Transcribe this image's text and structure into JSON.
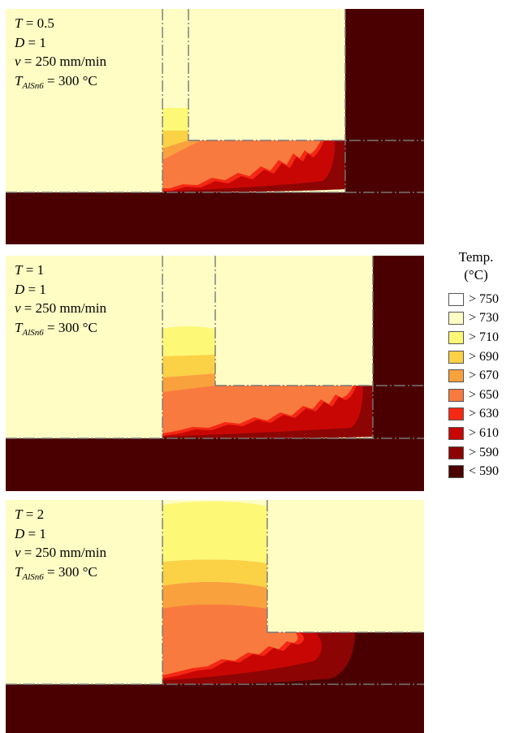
{
  "panels": [
    {
      "T": "0.5",
      "D": "1",
      "v": "250 mm/min",
      "T_alsn6": "300 °C"
    },
    {
      "T": "1",
      "D": "1",
      "v": "250 mm/min",
      "T_alsn6": "300 °C"
    },
    {
      "T": "2",
      "D": "1",
      "v": "250 mm/min",
      "T_alsn6": "300 °C"
    }
  ],
  "symbols": {
    "T": "T",
    "D": "D",
    "v": "v",
    "T_sub": "AlSn6",
    "eq": " = "
  },
  "legend": {
    "title_line1": "Temp.",
    "title_line2": "(°C)",
    "items": [
      {
        "label": "> 750",
        "color": "#ffffff"
      },
      {
        "label": "> 730",
        "color": "#fffdc4"
      },
      {
        "label": "> 710",
        "color": "#fdf876"
      },
      {
        "label": "> 690",
        "color": "#fbd146"
      },
      {
        "label": "> 670",
        "color": "#f9a13d"
      },
      {
        "label": "> 650",
        "color": "#f97a3f"
      },
      {
        "label": "> 630",
        "color": "#f52814"
      },
      {
        "label": "> 610",
        "color": "#c80705"
      },
      {
        "label": "> 590",
        "color": "#8c0504"
      },
      {
        "label": "< 590",
        "color": "#4a0000"
      }
    ]
  }
}
